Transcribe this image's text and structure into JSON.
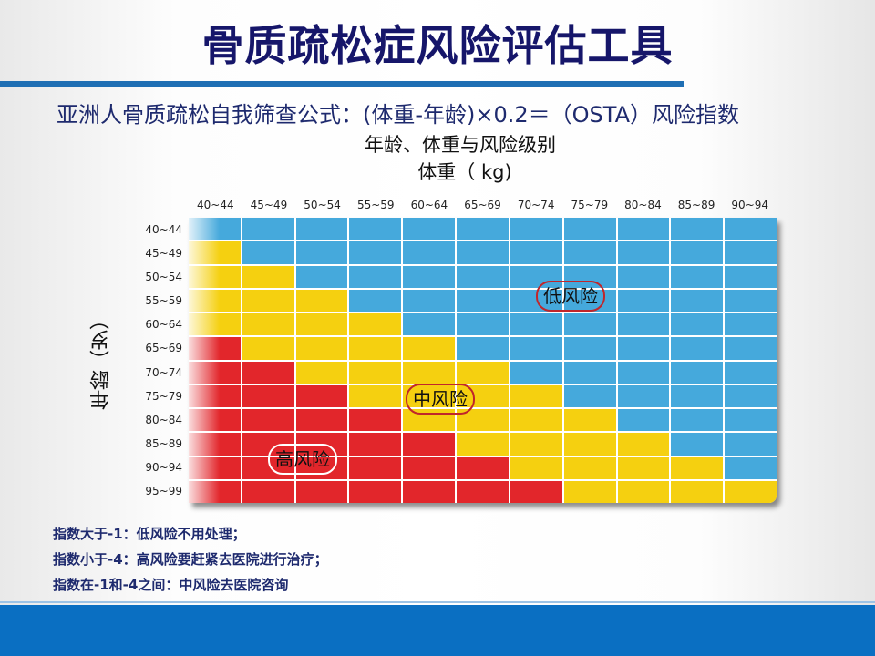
{
  "title": "骨质疏松症风险评估工具",
  "formula": "亚洲人骨质疏松自我筛查公式：(体重-年龄)×0.2＝（OSTA）风险指数",
  "subtitle": "年龄、体重与风险级别",
  "x_axis_label": "体重（ kg)",
  "y_axis_label": "年龄（岁）",
  "columns": [
    "40~44",
    "45~49",
    "50~54",
    "55~59",
    "60~64",
    "65~69",
    "70~74",
    "75~79",
    "80~84",
    "85~89",
    "90~94"
  ],
  "rows": [
    "40~44",
    "45~49",
    "50~54",
    "55~59",
    "60~64",
    "65~69",
    "70~74",
    "75~79",
    "80~84",
    "85~89",
    "90~94",
    "95~99"
  ],
  "grid": [
    "BBBBBBBBBBB",
    "YBBBBBBBBBB",
    "YYBBBBBBBBB",
    "YYYBBBBBBBB",
    "YYYYBBBBBBB",
    "RYYYYBBBBBB",
    "RRYYYYBBBBB",
    "RRRYYYYBBBB",
    "RRRRYYYYBBB",
    "RRRRRYYYYBB",
    "RRRRRRYYYYB",
    "RRRRRRRYYYY"
  ],
  "colors": {
    "B": "#45a9dc",
    "Y": "#f5d010",
    "R": "#e2262b"
  },
  "labels": {
    "low": "低风险",
    "mid": "中风险",
    "high": "高风险"
  },
  "notes": [
    "指数大于-1：低风险不用处理；",
    "指数小于-4：高风险要赶紧去医院进行治疗；",
    "指数在-1和-4之间：中风险去医院咨询"
  ]
}
